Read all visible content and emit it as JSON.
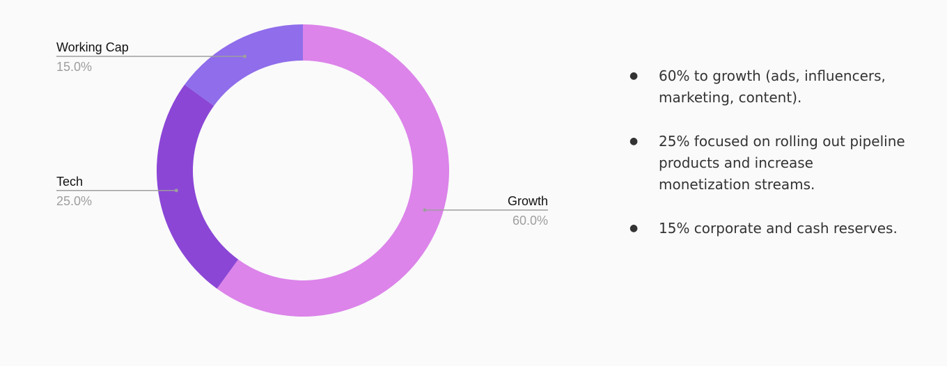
{
  "chart_data": {
    "type": "pie",
    "categories": [
      "Growth",
      "Tech",
      "Working Cap"
    ],
    "values": [
      60,
      25,
      15
    ],
    "value_labels": [
      "60.0%",
      "25.0%",
      "15.0%"
    ],
    "colors": [
      "#dc84ea",
      "#8b46d6",
      "#8f6deb"
    ]
  },
  "bullets": [
    "60% to growth (ads, influencers, marketing, content).",
    "25% focused on rolling out pipeline products and increase monetization streams.",
    "15% corporate and cash reserves."
  ]
}
